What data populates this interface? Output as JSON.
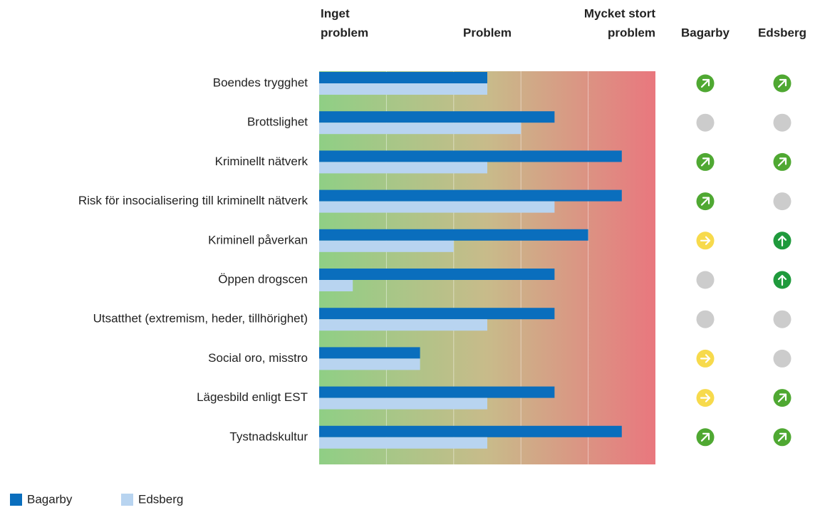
{
  "chart_data": {
    "type": "bar",
    "orientation": "horizontal",
    "scale_labels": [
      [
        "Inget",
        "problem"
      ],
      [
        "Problem"
      ],
      [
        "Mycket stort",
        "problem"
      ]
    ],
    "categories": [
      "Boendes trygghet",
      "Brottslighet",
      "Kriminellt nätverk",
      "Risk för insocialisering till kriminellt nätverk",
      "Kriminell påverkan",
      "Öppen drogscen",
      "Utsatthet (extremism, heder, tillhörighet)",
      "Social oro, misstro",
      "Lägesbild enligt EST",
      "Tystnadskultur"
    ],
    "series": [
      {
        "name": "Bagarby",
        "color": "#0a6ebd",
        "values": [
          2.5,
          3.5,
          4.5,
          4.5,
          4,
          3.5,
          3.5,
          1.5,
          3.5,
          4.5
        ]
      },
      {
        "name": "Edsberg",
        "color": "#b8d4f0",
        "values": [
          2.5,
          3,
          2.5,
          3.5,
          2,
          0.5,
          2.5,
          1.5,
          2.5,
          2.5
        ]
      }
    ],
    "xlim": [
      0,
      5
    ],
    "xticks": [
      1,
      2,
      3,
      4
    ],
    "grid": true,
    "background_gradient": [
      "#8fcf85",
      "#c8bb8a",
      "#e9777e"
    ],
    "trends": {
      "columns": [
        "Bagarby",
        "Edsberg"
      ],
      "values": [
        [
          "up-right",
          "up-right"
        ],
        [
          "none",
          "none"
        ],
        [
          "up-right",
          "up-right"
        ],
        [
          "up-right",
          "none"
        ],
        [
          "right",
          "up"
        ],
        [
          "none",
          "up"
        ],
        [
          "none",
          "none"
        ],
        [
          "right",
          "none"
        ],
        [
          "right",
          "up-right"
        ],
        [
          "up-right",
          "up-right"
        ]
      ],
      "colors": {
        "up-right": "#4fa832",
        "none": "#cccccc",
        "right": "#f7da4c",
        "up": "#1f9a3c"
      }
    }
  }
}
